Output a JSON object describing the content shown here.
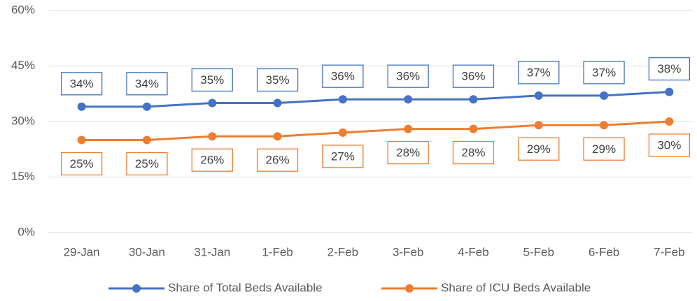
{
  "chart_data": {
    "type": "line",
    "categories": [
      "29-Jan",
      "30-Jan",
      "31-Jan",
      "1-Feb",
      "2-Feb",
      "3-Feb",
      "4-Feb",
      "5-Feb",
      "6-Feb",
      "7-Feb"
    ],
    "series": [
      {
        "name": "Share of Total Beds Available",
        "color": "#4472c4",
        "values": [
          34,
          34,
          35,
          35,
          36,
          36,
          36,
          37,
          37,
          38
        ],
        "value_labels": [
          "34%",
          "34%",
          "35%",
          "35%",
          "36%",
          "36%",
          "36%",
          "37%",
          "37%",
          "38%"
        ]
      },
      {
        "name": "Share of ICU Beds Available",
        "color": "#ed7d31",
        "values": [
          25,
          25,
          26,
          26,
          27,
          28,
          28,
          29,
          29,
          30
        ],
        "value_labels": [
          "25%",
          "25%",
          "26%",
          "26%",
          "27%",
          "28%",
          "28%",
          "29%",
          "29%",
          "30%"
        ]
      }
    ],
    "ylim": [
      0,
      60
    ],
    "yticks": [
      {
        "value": 0,
        "label": "0%"
      },
      {
        "value": 15,
        "label": "15%"
      },
      {
        "value": 30,
        "label": "30%"
      },
      {
        "value": 45,
        "label": "45%"
      },
      {
        "value": 60,
        "label": "60%"
      }
    ],
    "grid": true,
    "legend": "bottom"
  }
}
